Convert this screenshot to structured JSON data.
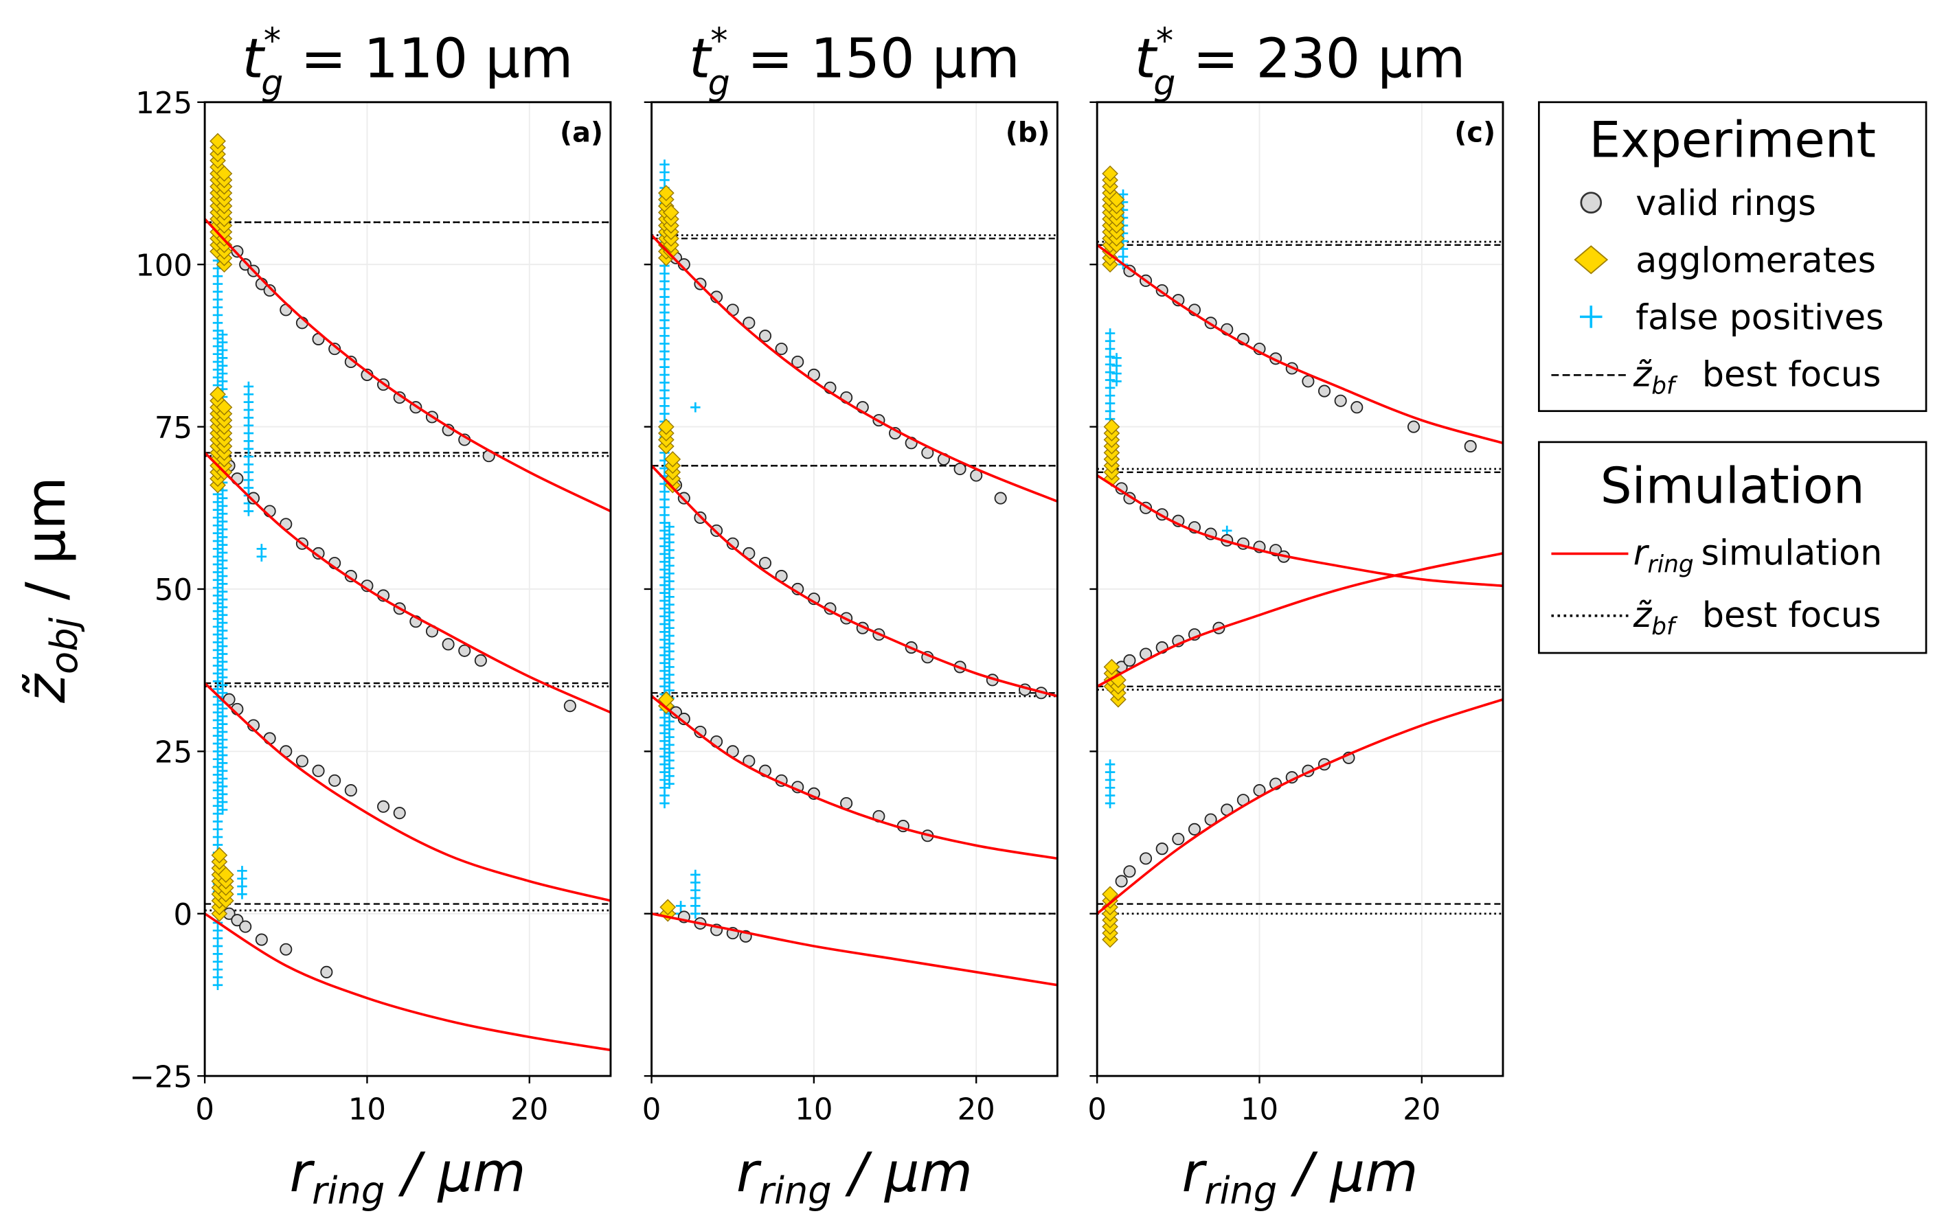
{
  "chart_data": {
    "type": "scatter",
    "ylabel": {
      "main": "z̃",
      "sub": "obj",
      "unit": " / μm"
    },
    "xlabel": {
      "main": "r",
      "sub": "ring",
      "unit": " / μm"
    },
    "xlim": [
      0,
      25
    ],
    "ylim": [
      -25,
      125
    ],
    "xticks": [
      "0",
      "10",
      "20"
    ],
    "xtick_values": [
      0,
      10,
      20
    ],
    "yticks": [
      "−25",
      "0",
      "25",
      "50",
      "75",
      "100",
      "125"
    ],
    "ytick_values": [
      -25,
      0,
      25,
      50,
      75,
      100,
      125
    ],
    "grid": true,
    "colors": {
      "valid": "#d9d9d9",
      "agglomerate": "#ffd700",
      "false_positive": "#00bfff",
      "simulation": "#ff0000"
    },
    "panels": [
      {
        "label": "(a)",
        "title": {
          "t": "t",
          "sup": "*",
          "sub": "g",
          "rest": " = 110 μm"
        },
        "simulation_curves_r": [
          0,
          5,
          10,
          15,
          20,
          25
        ],
        "simulation_curves": [
          [
            107,
            94,
            83.5,
            75,
            68,
            62
          ],
          [
            71,
            59,
            50,
            43,
            36.5,
            31
          ],
          [
            35.5,
            24,
            15.5,
            9,
            5,
            2
          ],
          [
            0,
            -8,
            -13,
            -16.5,
            -19,
            -21
          ]
        ],
        "best_focus_experiment": [
          106.5,
          71,
          35.5,
          1.5
        ],
        "best_focus_simulation": [
          106.5,
          70.5,
          35,
          0.5
        ],
        "valid_rings": [
          [
            2,
            102
          ],
          [
            2.5,
            100
          ],
          [
            3,
            99
          ],
          [
            3.5,
            97
          ],
          [
            4,
            96
          ],
          [
            5,
            93
          ],
          [
            6,
            91
          ],
          [
            7,
            88.5
          ],
          [
            8,
            87
          ],
          [
            9,
            85
          ],
          [
            10,
            83
          ],
          [
            11,
            81.5
          ],
          [
            12,
            79.5
          ],
          [
            13,
            78
          ],
          [
            14,
            76.5
          ],
          [
            15,
            74.5
          ],
          [
            16,
            73
          ],
          [
            17.5,
            70.5
          ],
          [
            1.5,
            69
          ],
          [
            2,
            67
          ],
          [
            3,
            64
          ],
          [
            4,
            62
          ],
          [
            5,
            60
          ],
          [
            6,
            57
          ],
          [
            7,
            55.5
          ],
          [
            8,
            54
          ],
          [
            9,
            52
          ],
          [
            10,
            50.5
          ],
          [
            11,
            49
          ],
          [
            12,
            47
          ],
          [
            13,
            45
          ],
          [
            14,
            43.5
          ],
          [
            15,
            41.5
          ],
          [
            16,
            40.5
          ],
          [
            17,
            39
          ],
          [
            22.5,
            32
          ],
          [
            1.5,
            33
          ],
          [
            2,
            31.5
          ],
          [
            3,
            29
          ],
          [
            4,
            27
          ],
          [
            5,
            25
          ],
          [
            6,
            23.5
          ],
          [
            7,
            22
          ],
          [
            8,
            20.5
          ],
          [
            9,
            19
          ],
          [
            11,
            16.5
          ],
          [
            12,
            15.5
          ],
          [
            1.5,
            0
          ],
          [
            2,
            -1
          ],
          [
            2.5,
            -2
          ],
          [
            3.5,
            -4
          ],
          [
            5,
            -5.5
          ],
          [
            7.5,
            -9
          ]
        ],
        "agglomerates": [
          {
            "r": 0.8,
            "z": [
              102,
              119
            ]
          },
          {
            "r": 1.2,
            "z": [
              100,
              114
            ]
          },
          {
            "r": 0.8,
            "z": [
              66,
              80
            ]
          },
          {
            "r": 1.2,
            "z": [
              68,
              78
            ]
          },
          {
            "r": 0.9,
            "z": [
              0,
              9
            ]
          },
          {
            "r": 1.3,
            "z": [
              2,
              6
            ]
          }
        ],
        "false_positives": [
          {
            "r": 0.8,
            "z": [
              -11,
              106
            ]
          },
          {
            "r": 1.1,
            "z": [
              16,
              90
            ]
          },
          {
            "r": 2.7,
            "z": [
              62,
              82
            ]
          },
          {
            "r": 2.3,
            "z": [
              3,
              7
            ]
          },
          {
            "r": 3.5,
            "z": [
              55,
              57
            ]
          }
        ]
      },
      {
        "label": "(b)",
        "title": {
          "t": "t",
          "sup": "*",
          "sub": "g",
          "rest": " = 150 μm"
        },
        "simulation_curves_r": [
          0,
          5,
          10,
          15,
          20,
          25
        ],
        "simulation_curves": [
          [
            104.5,
            92,
            82,
            74.5,
            68.5,
            63.5
          ],
          [
            69,
            56.5,
            48,
            42,
            37,
            33.5
          ],
          [
            33.5,
            24,
            18,
            13.5,
            10.5,
            8.5
          ],
          [
            0,
            -2.5,
            -5,
            -7,
            -9,
            -11
          ]
        ],
        "best_focus_experiment": [
          104,
          69,
          34,
          0
        ],
        "best_focus_simulation": [
          104.5,
          69,
          33.5,
          0
        ],
        "valid_rings": [
          [
            1.5,
            101
          ],
          [
            2,
            100
          ],
          [
            3,
            97
          ],
          [
            4,
            95
          ],
          [
            5,
            93
          ],
          [
            6,
            91
          ],
          [
            7,
            89
          ],
          [
            8,
            87
          ],
          [
            9,
            85
          ],
          [
            10,
            83
          ],
          [
            11,
            81
          ],
          [
            12,
            79.5
          ],
          [
            13,
            78
          ],
          [
            14,
            76
          ],
          [
            15,
            74
          ],
          [
            16,
            72.5
          ],
          [
            17,
            71
          ],
          [
            18,
            70
          ],
          [
            19,
            68.5
          ],
          [
            20,
            67.5
          ],
          [
            21.5,
            64
          ],
          [
            1.5,
            66
          ],
          [
            2,
            64
          ],
          [
            3,
            61
          ],
          [
            4,
            59
          ],
          [
            5,
            57
          ],
          [
            6,
            55.5
          ],
          [
            7,
            54
          ],
          [
            8,
            52
          ],
          [
            9,
            50
          ],
          [
            10,
            48.5
          ],
          [
            11,
            47
          ],
          [
            12,
            45.5
          ],
          [
            13,
            44
          ],
          [
            14,
            43
          ],
          [
            16,
            41
          ],
          [
            17,
            39.5
          ],
          [
            19,
            38
          ],
          [
            21,
            36
          ],
          [
            23,
            34.5
          ],
          [
            24,
            34
          ],
          [
            1.5,
            31
          ],
          [
            2,
            30
          ],
          [
            3,
            28
          ],
          [
            4,
            26.5
          ],
          [
            5,
            25
          ],
          [
            6,
            23.5
          ],
          [
            7,
            22
          ],
          [
            8,
            20.5
          ],
          [
            9,
            19.5
          ],
          [
            10,
            18.5
          ],
          [
            12,
            17
          ],
          [
            14,
            15
          ],
          [
            15.5,
            13.5
          ],
          [
            17,
            12
          ],
          [
            2,
            -0.5
          ],
          [
            3,
            -1.5
          ],
          [
            4,
            -2.5
          ],
          [
            5,
            -3
          ],
          [
            5.8,
            -3.5
          ]
        ],
        "agglomerates": [
          {
            "r": 0.9,
            "z": [
              101,
              111
            ]
          },
          {
            "r": 1.2,
            "z": [
              102,
              108
            ]
          },
          {
            "r": 0.9,
            "z": [
              72,
              75
            ]
          },
          {
            "r": 1.3,
            "z": [
              66,
              70
            ]
          },
          {
            "r": 0.9,
            "z": [
              32,
              33
            ]
          },
          {
            "r": 1.0,
            "z": [
              0,
              1
            ]
          }
        ],
        "false_positives": [
          {
            "r": 0.8,
            "z": [
              17,
              116
            ]
          },
          {
            "r": 1.1,
            "z": [
              20,
              60
            ]
          },
          {
            "r": 2.7,
            "z": [
              0,
              6
            ]
          },
          {
            "r": 2.7,
            "z": [
              78,
              79
            ]
          },
          {
            "r": 1.8,
            "z": [
              0,
              2
            ]
          }
        ]
      },
      {
        "label": "(c)",
        "title": {
          "t": "t",
          "sup": "*",
          "sub": "g",
          "rest": " = 230 μm"
        },
        "simulation_curves_r": [
          0,
          5,
          10,
          15,
          20,
          25
        ],
        "simulation_curves": [
          [
            103,
            94,
            86.5,
            81,
            76,
            72.5
          ],
          [
            67.5,
            60,
            56,
            53.5,
            51.5,
            50.5
          ],
          [
            35,
            41.5,
            46,
            50,
            53,
            55.5
          ],
          [
            0,
            10,
            18,
            24,
            29,
            33
          ]
        ],
        "best_focus_experiment": [
          103,
          68,
          35,
          1.5
        ],
        "best_focus_simulation": [
          103.5,
          68.5,
          34.5,
          0
        ],
        "valid_rings": [
          [
            2,
            99
          ],
          [
            3,
            97.5
          ],
          [
            4,
            96
          ],
          [
            5,
            94.5
          ],
          [
            6,
            93
          ],
          [
            7,
            91
          ],
          [
            8,
            90
          ],
          [
            9,
            88.5
          ],
          [
            10,
            87
          ],
          [
            11,
            85.5
          ],
          [
            12,
            84
          ],
          [
            13,
            82
          ],
          [
            14,
            80.5
          ],
          [
            15,
            79
          ],
          [
            16,
            78
          ],
          [
            19.5,
            75
          ],
          [
            23,
            72
          ],
          [
            1.5,
            65.5
          ],
          [
            2,
            64
          ],
          [
            3,
            62.5
          ],
          [
            4,
            61.5
          ],
          [
            5,
            60.5
          ],
          [
            6,
            59.5
          ],
          [
            7,
            58.5
          ],
          [
            8,
            57.5
          ],
          [
            9,
            57
          ],
          [
            10,
            56.5
          ],
          [
            11,
            56
          ],
          [
            11.5,
            55
          ],
          [
            1.5,
            38
          ],
          [
            2,
            39
          ],
          [
            3,
            40
          ],
          [
            4,
            41
          ],
          [
            5,
            42
          ],
          [
            6,
            43
          ],
          [
            7.5,
            44
          ],
          [
            1.5,
            5
          ],
          [
            2,
            6.5
          ],
          [
            3,
            8.5
          ],
          [
            4,
            10
          ],
          [
            5,
            11.5
          ],
          [
            6,
            13
          ],
          [
            7,
            14.5
          ],
          [
            8,
            16
          ],
          [
            9,
            17.5
          ],
          [
            10,
            19
          ],
          [
            11,
            20
          ],
          [
            12,
            21
          ],
          [
            13,
            22
          ],
          [
            14,
            23
          ],
          [
            15.5,
            24
          ]
        ],
        "agglomerates": [
          {
            "r": 0.8,
            "z": [
              100,
              114
            ]
          },
          {
            "r": 1.2,
            "z": [
              103,
              110
            ]
          },
          {
            "r": 0.9,
            "z": [
              67,
              75
            ]
          },
          {
            "r": 0.9,
            "z": [
              35,
              38
            ]
          },
          {
            "r": 1.3,
            "z": [
              33,
              36
            ]
          },
          {
            "r": 0.8,
            "z": [
              -4,
              3
            ]
          }
        ],
        "false_positives": [
          {
            "r": 0.8,
            "z": [
              75,
              90
            ]
          },
          {
            "r": 1.6,
            "z": [
              100,
              112
            ]
          },
          {
            "r": 0.8,
            "z": [
              17,
              24
            ]
          },
          {
            "r": 1.2,
            "z": [
              82,
              86
            ]
          },
          {
            "r": 8,
            "z": [
              59,
              60
            ]
          }
        ]
      }
    ],
    "legend": {
      "placement": "right",
      "experiment": {
        "title": "Experiment",
        "items": [
          "valid rings",
          "agglomerates",
          "false positives"
        ],
        "best_focus": {
          "sym": "z̃",
          "sub": "bf",
          "text": "best focus"
        }
      },
      "simulation": {
        "title": "Simulation",
        "sim": {
          "sym": "r",
          "sub": "ring",
          "text": "simulation"
        },
        "best_focus": {
          "sym": "z̃",
          "sub": "bf",
          "text": "best focus"
        }
      }
    }
  }
}
